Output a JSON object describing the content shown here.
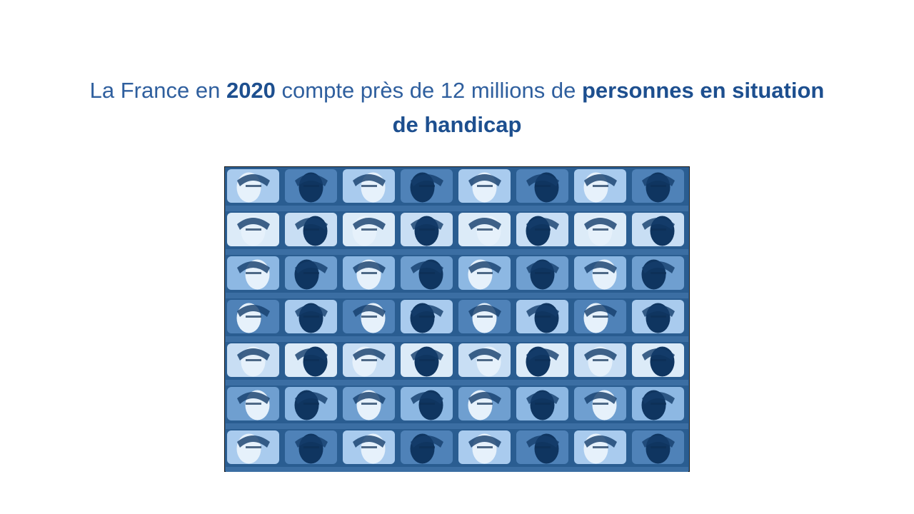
{
  "title": {
    "segments": [
      {
        "text": "La France en ",
        "emphasis": false
      },
      {
        "text": "2020",
        "emphasis": true
      },
      {
        "text": " compte près de 12 millions de ",
        "emphasis": false
      },
      {
        "text": "personnes",
        "emphasis": true
      },
      {
        "text": " en situation",
        "emphasis": true
      },
      {
        "text": "de handicap",
        "emphasis": true
      }
    ]
  }
}
